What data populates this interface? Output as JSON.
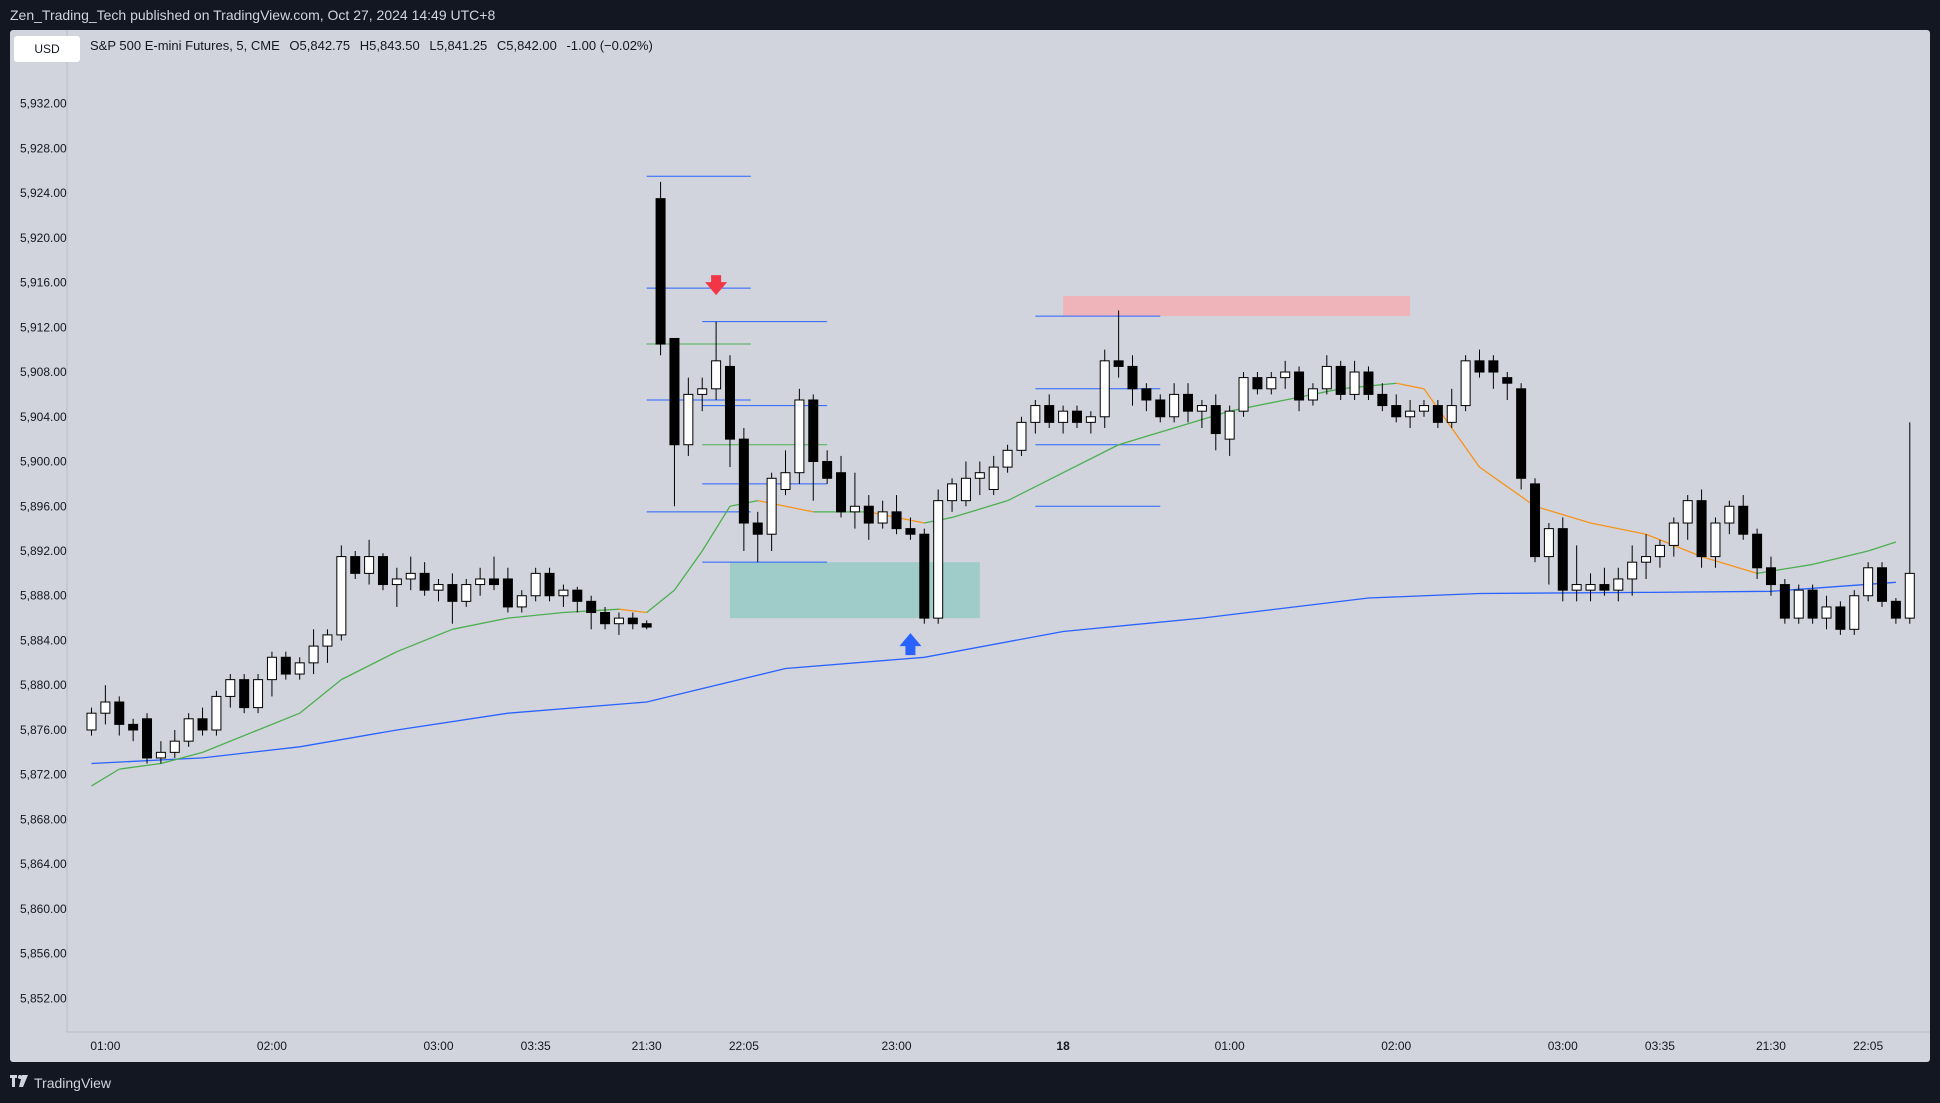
{
  "header": {
    "publisher_line": "Zen_Trading_Tech published on TradingView.com, Oct 27, 2024 14:49 UTC+8"
  },
  "toolbar": {
    "currency": "USD"
  },
  "legend": {
    "symbol": "S&P 500 E-mini Futures, 5, CME",
    "open": "O5,842.75",
    "high": "H5,843.50",
    "low": "L5,841.25",
    "close": "C5,842.00",
    "change": "-1.00 (−0.02%)"
  },
  "footer": {
    "brand": "TradingView",
    "logo_icon": "tradingview-logo-icon"
  },
  "colors": {
    "background": "#131722",
    "chart_bg": "#d1d4dc",
    "up_candle": "#ffffff",
    "down_candle": "#000000",
    "ema_long": "#2962ff",
    "ema_short": "#4caf50",
    "ema_short_alt": "#f7931a",
    "level_lines": "#2962ff",
    "supply_zone": "#f7a9ae",
    "demand_zone": "#8ec9c3",
    "arrow_down": "#f23645",
    "arrow_up": "#2962ff"
  },
  "chart_data": {
    "type": "candlestick",
    "title": "",
    "ylim": [
      5849,
      5935
    ],
    "y_ticks": [
      "5,932.00",
      "5,928.00",
      "5,924.00",
      "5,920.00",
      "5,916.00",
      "5,912.00",
      "5,908.00",
      "5,904.00",
      "5,900.00",
      "5,896.00",
      "5,892.00",
      "5,888.00",
      "5,884.00",
      "5,880.00",
      "5,876.00",
      "5,872.00",
      "5,868.00",
      "5,864.00",
      "5,860.00",
      "5,856.00",
      "5,852.00"
    ],
    "y_tick_values": [
      5932,
      5928,
      5924,
      5920,
      5916,
      5912,
      5908,
      5904,
      5900,
      5896,
      5892,
      5888,
      5884,
      5880,
      5876,
      5872,
      5868,
      5864,
      5860,
      5856,
      5852
    ],
    "x_ticks": [
      {
        "label": "01:00",
        "index": 1
      },
      {
        "label": "02:00",
        "index": 13
      },
      {
        "label": "03:00",
        "index": 25
      },
      {
        "label": "03:35",
        "index": 32
      },
      {
        "label": "21:30",
        "index": 40
      },
      {
        "label": "22:05",
        "index": 47
      },
      {
        "label": "23:00",
        "index": 58
      },
      {
        "label": "18",
        "index": 70,
        "bold": true
      },
      {
        "label": "01:00",
        "index": 82
      },
      {
        "label": "02:00",
        "index": 94
      },
      {
        "label": "03:00",
        "index": 106
      },
      {
        "label": "03:35",
        "index": 113
      },
      {
        "label": "21:30",
        "index": 121
      },
      {
        "label": "22:05",
        "index": 128
      }
    ],
    "candles": [
      [
        5876.0,
        5878.0,
        5875.5,
        5877.5
      ],
      [
        5877.5,
        5880.0,
        5876.5,
        5878.5
      ],
      [
        5878.5,
        5879.0,
        5875.5,
        5876.5
      ],
      [
        5876.5,
        5877.0,
        5875.0,
        5876.0
      ],
      [
        5877.0,
        5877.5,
        5873.0,
        5873.5
      ],
      [
        5873.5,
        5875.0,
        5873.0,
        5874.0
      ],
      [
        5874.0,
        5876.0,
        5873.5,
        5875.0
      ],
      [
        5875.0,
        5877.5,
        5874.5,
        5877.0
      ],
      [
        5877.0,
        5878.0,
        5875.5,
        5876.0
      ],
      [
        5876.0,
        5879.5,
        5875.5,
        5879.0
      ],
      [
        5879.0,
        5881.0,
        5878.0,
        5880.5
      ],
      [
        5880.5,
        5881.0,
        5877.5,
        5878.0
      ],
      [
        5878.0,
        5881.0,
        5877.5,
        5880.5
      ],
      [
        5880.5,
        5883.0,
        5879.0,
        5882.5
      ],
      [
        5882.5,
        5883.0,
        5880.5,
        5881.0
      ],
      [
        5881.0,
        5882.5,
        5880.5,
        5882.0
      ],
      [
        5882.0,
        5885.0,
        5881.0,
        5883.5
      ],
      [
        5883.5,
        5885.0,
        5882.0,
        5884.5
      ],
      [
        5884.5,
        5892.5,
        5884.0,
        5891.5
      ],
      [
        5891.5,
        5892.0,
        5889.5,
        5890.0
      ],
      [
        5890.0,
        5893.0,
        5889.0,
        5891.5
      ],
      [
        5891.5,
        5891.8,
        5888.5,
        5889.0
      ],
      [
        5889.0,
        5890.5,
        5887.0,
        5889.5
      ],
      [
        5889.5,
        5891.5,
        5888.5,
        5890.0
      ],
      [
        5890.0,
        5891.0,
        5888.0,
        5888.5
      ],
      [
        5888.5,
        5889.5,
        5887.5,
        5889.0
      ],
      [
        5889.0,
        5890.0,
        5885.5,
        5887.5
      ],
      [
        5887.5,
        5889.5,
        5887.0,
        5889.0
      ],
      [
        5889.0,
        5890.5,
        5888.0,
        5889.5
      ],
      [
        5889.5,
        5891.5,
        5888.5,
        5889.0
      ],
      [
        5889.5,
        5890.5,
        5886.5,
        5887.0
      ],
      [
        5887.0,
        5888.5,
        5886.5,
        5888.0
      ],
      [
        5888.0,
        5890.5,
        5887.5,
        5890.0
      ],
      [
        5890.0,
        5890.5,
        5887.5,
        5888.0
      ],
      [
        5888.0,
        5889.0,
        5887.0,
        5888.5
      ],
      [
        5888.5,
        5888.8,
        5886.5,
        5887.5
      ],
      [
        5887.5,
        5888.0,
        5885.0,
        5886.5
      ],
      [
        5886.5,
        5887.0,
        5885.0,
        5885.5
      ],
      [
        5885.5,
        5886.5,
        5884.5,
        5886.0
      ],
      [
        5886.0,
        5886.5,
        5885.0,
        5885.5
      ],
      [
        5885.5,
        5885.8,
        5885.0,
        5885.2
      ],
      [
        5923.5,
        5925.0,
        5909.5,
        5910.5
      ],
      [
        5911.0,
        5911.0,
        5896.0,
        5901.5
      ],
      [
        5901.5,
        5907.5,
        5900.5,
        5906.0
      ],
      [
        5906.0,
        5907.5,
        5904.5,
        5906.5
      ],
      [
        5906.5,
        5912.5,
        5905.5,
        5909.0
      ],
      [
        5908.5,
        5909.5,
        5899.5,
        5902.0
      ],
      [
        5902.0,
        5903.0,
        5892.0,
        5894.5
      ],
      [
        5894.5,
        5895.5,
        5891.0,
        5893.5
      ],
      [
        5893.5,
        5899.0,
        5892.0,
        5898.5
      ],
      [
        5897.5,
        5901.0,
        5897.0,
        5899.0
      ],
      [
        5899.0,
        5906.5,
        5898.0,
        5905.5
      ],
      [
        5905.5,
        5906.0,
        5896.5,
        5900.0
      ],
      [
        5900.0,
        5901.0,
        5898.0,
        5898.5
      ],
      [
        5899.0,
        5900.5,
        5895.0,
        5895.5
      ],
      [
        5895.5,
        5899.0,
        5894.0,
        5896.0
      ],
      [
        5896.0,
        5897.0,
        5893.0,
        5894.5
      ],
      [
        5894.5,
        5896.5,
        5894.0,
        5895.5
      ],
      [
        5895.5,
        5897.0,
        5893.5,
        5894.0
      ],
      [
        5894.0,
        5895.0,
        5893.0,
        5893.5
      ],
      [
        5893.5,
        5894.0,
        5885.5,
        5886.0
      ],
      [
        5886.0,
        5897.5,
        5885.5,
        5896.5
      ],
      [
        5896.5,
        5898.5,
        5895.5,
        5898.0
      ],
      [
        5896.5,
        5900.0,
        5896.0,
        5898.5
      ],
      [
        5898.5,
        5900.0,
        5897.0,
        5899.0
      ],
      [
        5897.5,
        5900.5,
        5897.0,
        5899.5
      ],
      [
        5899.5,
        5901.5,
        5899.0,
        5901.0
      ],
      [
        5901.0,
        5904.0,
        5900.5,
        5903.5
      ],
      [
        5903.5,
        5905.5,
        5902.5,
        5905.0
      ],
      [
        5905.0,
        5906.0,
        5903.0,
        5903.5
      ],
      [
        5903.5,
        5905.0,
        5902.5,
        5904.5
      ],
      [
        5904.5,
        5905.0,
        5903.0,
        5903.5
      ],
      [
        5903.5,
        5904.5,
        5902.5,
        5904.0
      ],
      [
        5904.0,
        5910.0,
        5903.0,
        5909.0
      ],
      [
        5909.0,
        5913.5,
        5907.5,
        5908.5
      ],
      [
        5908.5,
        5909.5,
        5905.0,
        5906.5
      ],
      [
        5906.5,
        5907.0,
        5904.5,
        5905.5
      ],
      [
        5905.5,
        5906.0,
        5903.5,
        5904.0
      ],
      [
        5904.0,
        5907.0,
        5903.5,
        5906.0
      ],
      [
        5906.0,
        5907.0,
        5903.5,
        5904.5
      ],
      [
        5904.5,
        5905.5,
        5903.0,
        5905.0
      ],
      [
        5905.0,
        5906.0,
        5901.0,
        5902.5
      ],
      [
        5902.0,
        5905.0,
        5900.5,
        5904.5
      ],
      [
        5904.5,
        5908.0,
        5904.0,
        5907.5
      ],
      [
        5907.5,
        5908.0,
        5906.0,
        5906.5
      ],
      [
        5906.5,
        5908.0,
        5906.0,
        5907.5
      ],
      [
        5907.5,
        5909.0,
        5906.5,
        5908.0
      ],
      [
        5908.0,
        5908.5,
        5904.5,
        5905.5
      ],
      [
        5905.5,
        5907.0,
        5905.0,
        5906.5
      ],
      [
        5906.5,
        5909.5,
        5906.0,
        5908.5
      ],
      [
        5908.5,
        5909.0,
        5905.5,
        5906.0
      ],
      [
        5906.0,
        5909.0,
        5905.5,
        5908.0
      ],
      [
        5908.0,
        5908.5,
        5905.5,
        5906.0
      ],
      [
        5906.0,
        5907.0,
        5904.5,
        5905.0
      ],
      [
        5905.0,
        5906.0,
        5903.5,
        5904.0
      ],
      [
        5904.0,
        5905.5,
        5903.0,
        5904.5
      ],
      [
        5904.5,
        5905.5,
        5904.0,
        5905.0
      ],
      [
        5905.0,
        5905.5,
        5903.0,
        5903.5
      ],
      [
        5903.5,
        5906.5,
        5903.0,
        5905.0
      ],
      [
        5905.0,
        5909.5,
        5904.5,
        5909.0
      ],
      [
        5909.0,
        5910.0,
        5907.5,
        5908.0
      ],
      [
        5909.0,
        5909.5,
        5906.5,
        5908.0
      ],
      [
        5907.5,
        5908.0,
        5905.5,
        5907.0
      ],
      [
        5906.5,
        5907.0,
        5897.5,
        5898.5
      ],
      [
        5898.0,
        5898.5,
        5891.0,
        5891.5
      ],
      [
        5891.5,
        5894.5,
        5889.0,
        5894.0
      ],
      [
        5894.0,
        5895.0,
        5887.5,
        5888.5
      ],
      [
        5888.5,
        5892.5,
        5887.5,
        5889.0
      ],
      [
        5888.5,
        5890.0,
        5887.5,
        5889.0
      ],
      [
        5889.0,
        5890.5,
        5888.0,
        5888.5
      ],
      [
        5888.5,
        5890.5,
        5887.5,
        5889.5
      ],
      [
        5889.5,
        5892.5,
        5888.0,
        5891.0
      ],
      [
        5891.0,
        5893.5,
        5889.5,
        5891.5
      ],
      [
        5891.5,
        5893.0,
        5890.5,
        5892.5
      ],
      [
        5892.5,
        5895.0,
        5891.5,
        5894.5
      ],
      [
        5894.5,
        5897.0,
        5893.0,
        5896.5
      ],
      [
        5896.5,
        5897.5,
        5890.5,
        5891.5
      ],
      [
        5891.5,
        5895.0,
        5890.5,
        5894.5
      ],
      [
        5894.5,
        5896.5,
        5893.5,
        5896.0
      ],
      [
        5896.0,
        5897.0,
        5893.0,
        5893.5
      ],
      [
        5893.5,
        5894.0,
        5889.5,
        5890.5
      ],
      [
        5890.5,
        5891.5,
        5888.0,
        5889.0
      ],
      [
        5889.0,
        5889.5,
        5885.5,
        5886.0
      ],
      [
        5886.0,
        5889.0,
        5885.5,
        5888.5
      ],
      [
        5888.5,
        5889.0,
        5885.5,
        5886.0
      ],
      [
        5886.0,
        5888.0,
        5885.0,
        5887.0
      ],
      [
        5887.0,
        5887.5,
        5884.5,
        5885.0
      ],
      [
        5885.0,
        5888.5,
        5884.5,
        5888.0
      ],
      [
        5888.0,
        5891.0,
        5887.5,
        5890.5
      ],
      [
        5890.5,
        5891.0,
        5887.0,
        5887.5
      ],
      [
        5887.5,
        5887.8,
        5885.5,
        5886.0
      ],
      [
        5886.0,
        5903.5,
        5885.5,
        5890.0
      ]
    ],
    "ema_long": [
      [
        0,
        5873.0
      ],
      [
        8,
        5873.5
      ],
      [
        15,
        5874.5
      ],
      [
        22,
        5876.0
      ],
      [
        30,
        5877.5
      ],
      [
        40,
        5878.5
      ],
      [
        50,
        5881.5
      ],
      [
        60,
        5882.5
      ],
      [
        70,
        5884.8
      ],
      [
        80,
        5886.0
      ],
      [
        92,
        5887.8
      ],
      [
        100,
        5888.2
      ],
      [
        112,
        5888.3
      ],
      [
        121,
        5888.4
      ],
      [
        130,
        5889.2
      ]
    ],
    "ema_short": [
      [
        0,
        5871.0
      ],
      [
        2,
        5872.5
      ],
      [
        5,
        5873.0
      ],
      [
        8,
        5874.0
      ],
      [
        12,
        5876.0
      ],
      [
        15,
        5877.5
      ],
      [
        18,
        5880.5
      ],
      [
        22,
        5883.0
      ],
      [
        26,
        5885.0
      ],
      [
        30,
        5886.0
      ],
      [
        34,
        5886.5
      ],
      [
        38,
        5886.8
      ],
      [
        40,
        5886.5
      ],
      [
        42,
        5888.5
      ],
      [
        44,
        5892.0
      ],
      [
        46,
        5896.0
      ],
      [
        48,
        5896.5
      ],
      [
        52,
        5895.5
      ],
      [
        56,
        5895.5
      ],
      [
        60,
        5894.5
      ],
      [
        62,
        5895.0
      ],
      [
        66,
        5896.5
      ],
      [
        70,
        5899.0
      ],
      [
        74,
        5901.5
      ],
      [
        78,
        5903.0
      ],
      [
        82,
        5904.5
      ],
      [
        86,
        5905.5
      ],
      [
        90,
        5906.5
      ],
      [
        94,
        5907.0
      ],
      [
        96,
        5906.5
      ],
      [
        98,
        5903.0
      ],
      [
        100,
        5899.5
      ],
      [
        104,
        5896.0
      ],
      [
        108,
        5894.5
      ],
      [
        112,
        5893.5
      ],
      [
        116,
        5891.5
      ],
      [
        120,
        5890.0
      ],
      [
        124,
        5890.8
      ],
      [
        128,
        5892.0
      ],
      [
        130,
        5892.8
      ]
    ],
    "levels": [
      {
        "y": 5925.5,
        "x0": 40,
        "x1": 47.5
      },
      {
        "y": 5915.5,
        "x0": 40,
        "x1": 47.5
      },
      {
        "y": 5910.5,
        "x0": 40,
        "x1": 47.5,
        "color": "green"
      },
      {
        "y": 5905.5,
        "x0": 40,
        "x1": 47.5
      },
      {
        "y": 5895.5,
        "x0": 40,
        "x1": 47.5
      },
      {
        "y": 5912.5,
        "x0": 44,
        "x1": 53
      },
      {
        "y": 5905.0,
        "x0": 44,
        "x1": 53
      },
      {
        "y": 5901.5,
        "x0": 44,
        "x1": 53,
        "color": "green"
      },
      {
        "y": 5898.0,
        "x0": 44,
        "x1": 53
      },
      {
        "y": 5891.0,
        "x0": 44,
        "x1": 53
      },
      {
        "y": 5913.0,
        "x0": 68,
        "x1": 77
      },
      {
        "y": 5906.5,
        "x0": 68,
        "x1": 77
      },
      {
        "y": 5901.5,
        "x0": 68,
        "x1": 77
      },
      {
        "y": 5896.0,
        "x0": 68,
        "x1": 77
      }
    ],
    "zones": [
      {
        "kind": "demand",
        "y0": 5886.0,
        "y1": 5891.0,
        "x0": 46,
        "x1": 64
      },
      {
        "kind": "supply",
        "y0": 5913.0,
        "y1": 5914.8,
        "x0": 70,
        "x1": 95
      }
    ],
    "markers": [
      {
        "kind": "arrow-down",
        "index": 45,
        "y": 5915.5
      },
      {
        "kind": "arrow-up",
        "index": 59,
        "y": 5883.5
      }
    ]
  }
}
